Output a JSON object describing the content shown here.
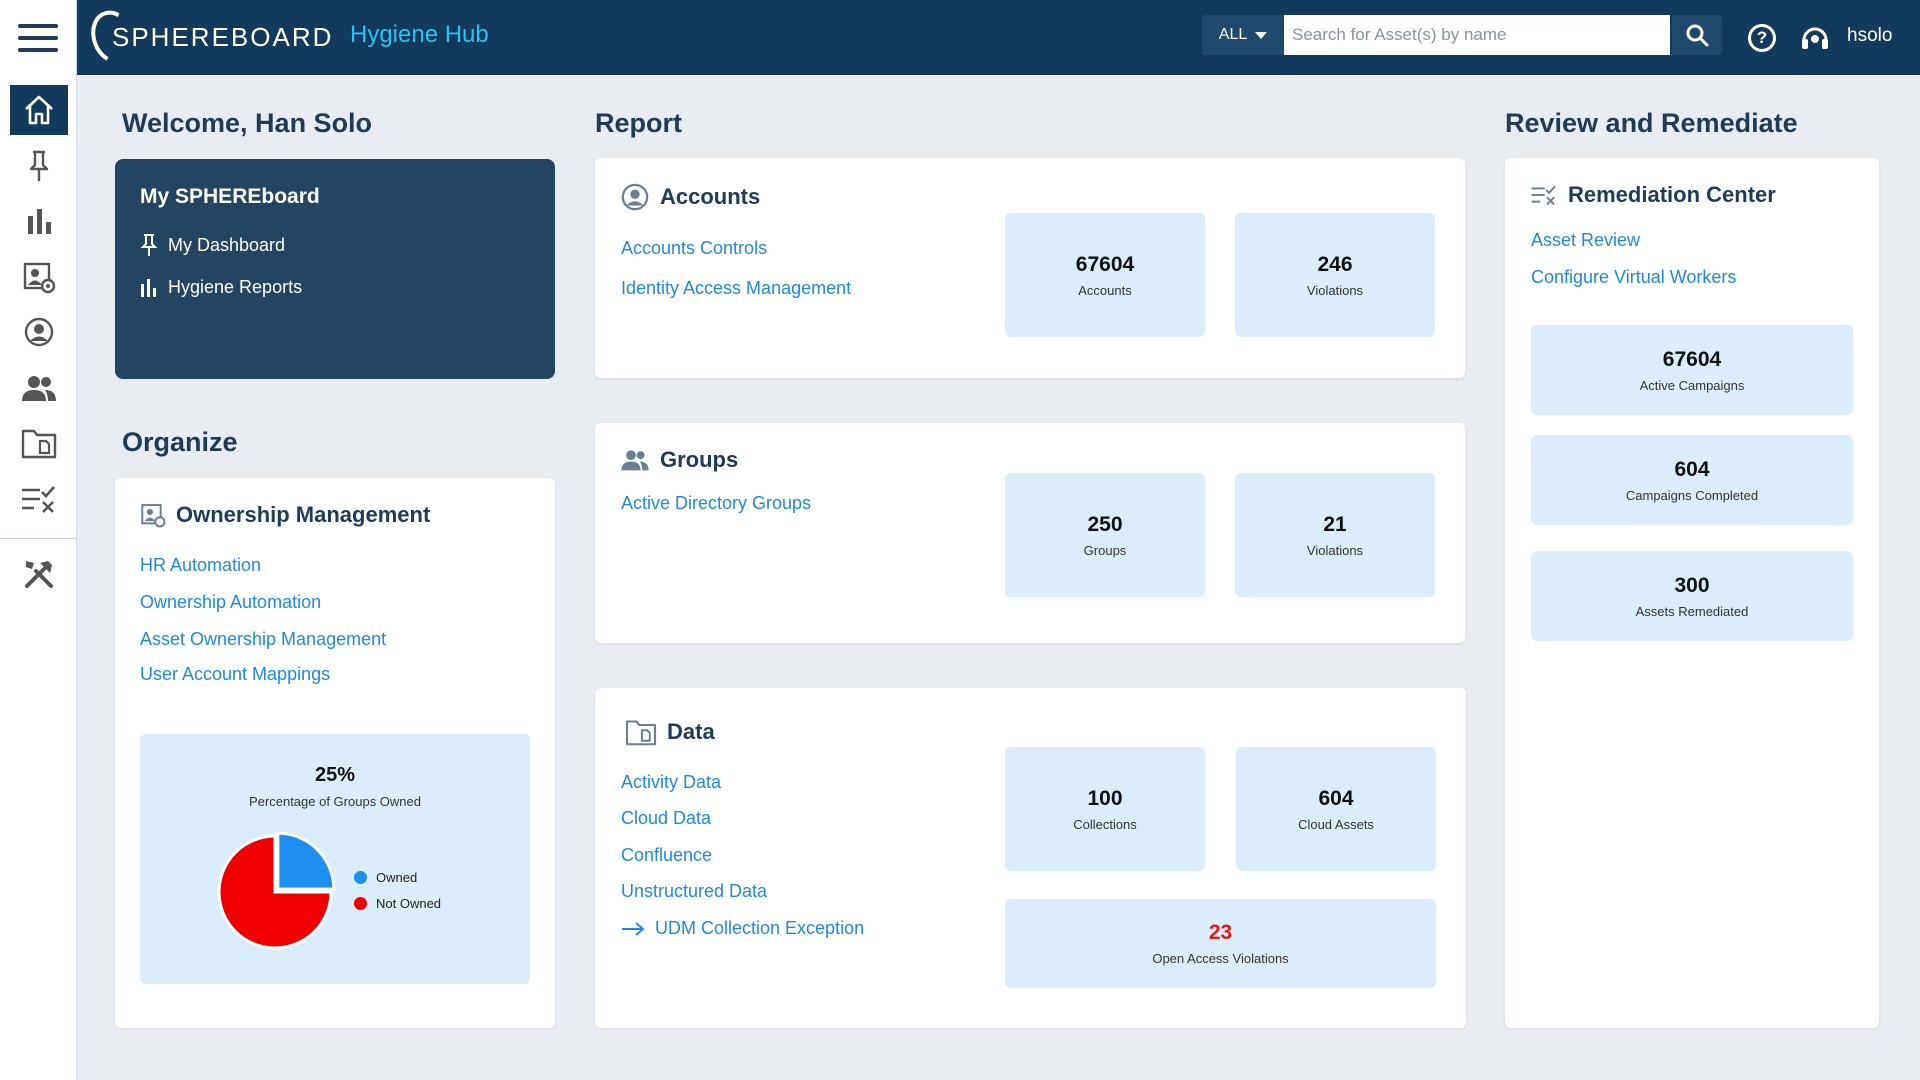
{
  "header": {
    "logo_text": "SPHEREBOARD",
    "app_name": "Hygiene Hub",
    "scope_label": "ALL",
    "search_placeholder": "Search for Asset(s) by name",
    "username": "hsolo"
  },
  "sidebar": {
    "items": [
      {
        "icon": "home-icon",
        "active": true
      },
      {
        "icon": "pin-icon"
      },
      {
        "icon": "bar-chart-icon"
      },
      {
        "icon": "ownership-icon"
      },
      {
        "icon": "account-icon"
      },
      {
        "icon": "groups-icon"
      },
      {
        "icon": "data-folder-icon"
      },
      {
        "icon": "remediation-icon"
      },
      {
        "icon": "tools-icon"
      }
    ]
  },
  "welcome": {
    "title": "Welcome, Han Solo",
    "card_title": "My SPHEREboard",
    "items": [
      "My Dashboard",
      "Hygiene Reports"
    ]
  },
  "organize": {
    "title": "Organize",
    "card_title": "Ownership Management",
    "links": [
      "HR Automation",
      "Ownership Automation",
      "Asset Ownership Management",
      "User Account Mappings"
    ],
    "chart": {
      "value": "25%",
      "label": "Percentage of Groups Owned",
      "legend": [
        "Owned",
        "Not Owned"
      ]
    }
  },
  "chart_data": {
    "type": "pie",
    "categories": [
      "Owned",
      "Not Owned"
    ],
    "values": [
      25,
      75
    ],
    "title": "25%",
    "colors": [
      "#1e90f0",
      "#f00000"
    ],
    "legend_position": "right"
  },
  "report": {
    "title": "Report",
    "accounts": {
      "title": "Accounts",
      "links": [
        "Accounts Controls",
        "Identity Access Management"
      ],
      "stats": [
        {
          "value": "67604",
          "label": "Accounts"
        },
        {
          "value": "246",
          "label": "Violations"
        }
      ]
    },
    "groups": {
      "title": "Groups",
      "links": [
        "Active Directory Groups"
      ],
      "stats": [
        {
          "value": "250",
          "label": "Groups"
        },
        {
          "value": "21",
          "label": "Violations"
        }
      ]
    },
    "data": {
      "title": "Data",
      "links": [
        "Activity Data",
        "Cloud Data",
        "Confluence",
        "Unstructured Data",
        "UDM Collection Exception"
      ],
      "stats": [
        {
          "value": "100",
          "label": "Collections"
        },
        {
          "value": "604",
          "label": "Cloud Assets"
        },
        {
          "value": "23",
          "label": "Open Access Violations"
        }
      ]
    }
  },
  "review": {
    "title": "Review and Remediate",
    "card_title": "Remediation Center",
    "links": [
      "Asset Review",
      "Configure Virtual Workers"
    ],
    "stats": [
      {
        "value": "67604",
        "label": "Active Campaigns"
      },
      {
        "value": "604",
        "label": "Campaigns Completed"
      },
      {
        "value": "300",
        "label": "Assets Remediated"
      }
    ]
  }
}
